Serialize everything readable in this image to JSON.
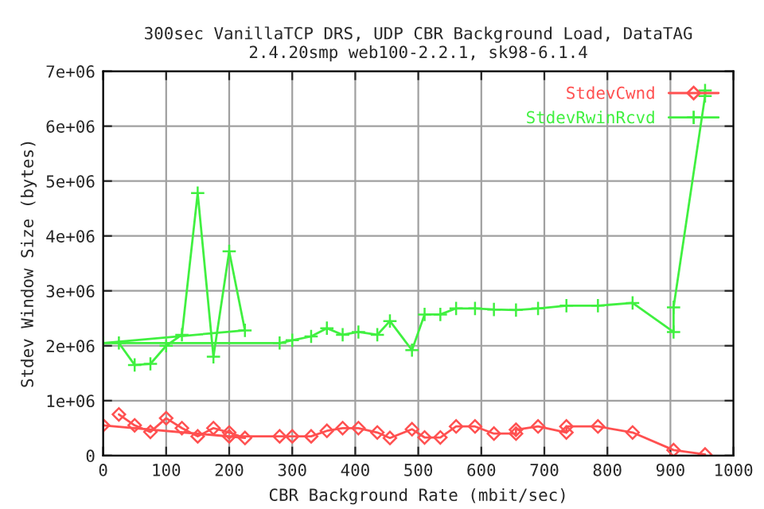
{
  "chart_data": {
    "type": "line",
    "title": "300sec VanillaTCP DRS, UDP CBR Background Load, DataTAG\n2.4.20smp web100-2.2.1, sk98-6.1.4",
    "xlabel": "CBR Background Rate (mbit/sec)",
    "ylabel": "Stdev Window Size (bytes)",
    "series": [
      {
        "name": "StdevCwnd",
        "color": "#ff5050",
        "marker": "diamond",
        "x": [
          25,
          50,
          75,
          100,
          125,
          150,
          175,
          200,
          225,
          0,
          200,
          280,
          300,
          330,
          355,
          380,
          405,
          435,
          455,
          490,
          510,
          535,
          560,
          590,
          620,
          655,
          655,
          690,
          735,
          735,
          785,
          840,
          905,
          955
        ],
        "values": [
          750000,
          550000,
          430000,
          680000,
          500000,
          350000,
          500000,
          420000,
          320000,
          550000,
          350000,
          350000,
          350000,
          350000,
          450000,
          500000,
          500000,
          420000,
          320000,
          480000,
          330000,
          330000,
          530000,
          530000,
          400000,
          400000,
          470000,
          530000,
          420000,
          530000,
          530000,
          420000,
          100000,
          20000
        ]
      },
      {
        "name": "StdevRwinRcvd",
        "color": "#40f040",
        "marker": "cross",
        "x": [
          25,
          50,
          75,
          100,
          125,
          150,
          175,
          200,
          225,
          0,
          280,
          300,
          330,
          355,
          380,
          405,
          435,
          455,
          490,
          510,
          535,
          560,
          590,
          620,
          655,
          690,
          735,
          785,
          840,
          905,
          905,
          955,
          955
        ],
        "values": [
          2050000,
          1650000,
          1670000,
          2000000,
          2200000,
          4780000,
          1800000,
          3720000,
          2280000,
          2050000,
          2050000,
          2100000,
          2170000,
          2320000,
          2200000,
          2250000,
          2200000,
          2450000,
          1920000,
          2570000,
          2570000,
          2680000,
          2680000,
          2660000,
          2650000,
          2680000,
          2730000,
          2730000,
          2780000,
          2250000,
          2700000,
          6550000,
          6650000
        ]
      }
    ],
    "xlim": [
      0,
      1000
    ],
    "xticks": [
      0,
      100,
      200,
      300,
      400,
      500,
      600,
      700,
      800,
      900,
      1000
    ],
    "ylim": [
      0,
      7000000
    ],
    "yticks": [
      {
        "value": 0,
        "label": "0"
      },
      {
        "value": 1000000,
        "label": "1e+06"
      },
      {
        "value": 2000000,
        "label": "2e+06"
      },
      {
        "value": 3000000,
        "label": "3e+06"
      },
      {
        "value": 4000000,
        "label": "4e+06"
      },
      {
        "value": 5000000,
        "label": "5e+06"
      },
      {
        "value": 6000000,
        "label": "6e+06"
      },
      {
        "value": 7000000,
        "label": "7e+06"
      }
    ],
    "grid": true,
    "legend": "top right",
    "line_style": "solid"
  }
}
